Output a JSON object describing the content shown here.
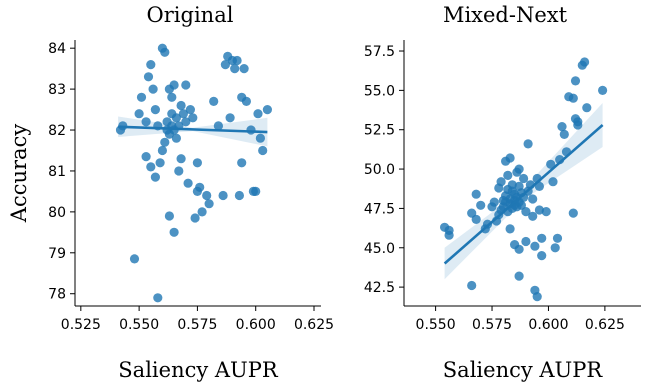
{
  "chart_data": [
    {
      "type": "scatter",
      "title": "Original",
      "xlabel": "Saliency AUPR",
      "ylabel": "Accuracy",
      "xlim": [
        0.5225,
        0.628
      ],
      "ylim": [
        77.7,
        84.2
      ],
      "xticks": [
        "0.525",
        "0.550",
        "0.575",
        "0.600",
        "0.625"
      ],
      "yticks": [
        "78",
        "79",
        "80",
        "81",
        "82",
        "83",
        "84"
      ],
      "xtick_values": [
        0.525,
        0.55,
        0.575,
        0.6,
        0.625
      ],
      "ytick_values": [
        78,
        79,
        80,
        81,
        82,
        83,
        84
      ],
      "regression": {
        "x": [
          0.541,
          0.605
        ],
        "y": [
          82.08,
          81.95
        ],
        "ci_halfwidth": [
          0.25,
          0.04,
          0.35
        ]
      },
      "points": [
        [
          0.542,
          82.0
        ],
        [
          0.543,
          82.1
        ],
        [
          0.548,
          78.85
        ],
        [
          0.55,
          82.4
        ],
        [
          0.551,
          82.8
        ],
        [
          0.553,
          82.2
        ],
        [
          0.553,
          81.35
        ],
        [
          0.554,
          83.3
        ],
        [
          0.555,
          83.6
        ],
        [
          0.555,
          81.1
        ],
        [
          0.556,
          83.0
        ],
        [
          0.557,
          80.85
        ],
        [
          0.557,
          82.5
        ],
        [
          0.558,
          77.9
        ],
        [
          0.558,
          82.1
        ],
        [
          0.559,
          81.2
        ],
        [
          0.56,
          84.0
        ],
        [
          0.56,
          81.5
        ],
        [
          0.561,
          83.9
        ],
        [
          0.561,
          81.7
        ],
        [
          0.562,
          82.0
        ],
        [
          0.562,
          82.2
        ],
        [
          0.563,
          79.9
        ],
        [
          0.563,
          83.0
        ],
        [
          0.563,
          81.9
        ],
        [
          0.564,
          82.8
        ],
        [
          0.564,
          82.1
        ],
        [
          0.564,
          82.4
        ],
        [
          0.565,
          79.5
        ],
        [
          0.565,
          82.0
        ],
        [
          0.565,
          83.1
        ],
        [
          0.566,
          81.8
        ],
        [
          0.566,
          82.3
        ],
        [
          0.567,
          82.1
        ],
        [
          0.567,
          81.0
        ],
        [
          0.568,
          82.6
        ],
        [
          0.568,
          81.3
        ],
        [
          0.569,
          82.4
        ],
        [
          0.57,
          83.1
        ],
        [
          0.57,
          82.2
        ],
        [
          0.571,
          80.7
        ],
        [
          0.572,
          82.5
        ],
        [
          0.573,
          82.3
        ],
        [
          0.574,
          79.85
        ],
        [
          0.575,
          80.5
        ],
        [
          0.575,
          81.2
        ],
        [
          0.576,
          80.6
        ],
        [
          0.577,
          80.0
        ],
        [
          0.579,
          80.4
        ],
        [
          0.58,
          80.2
        ],
        [
          0.582,
          82.7
        ],
        [
          0.584,
          82.1
        ],
        [
          0.586,
          80.4
        ],
        [
          0.587,
          83.6
        ],
        [
          0.588,
          83.8
        ],
        [
          0.589,
          82.3
        ],
        [
          0.59,
          83.7
        ],
        [
          0.591,
          83.5
        ],
        [
          0.592,
          83.7
        ],
        [
          0.593,
          80.4
        ],
        [
          0.594,
          82.8
        ],
        [
          0.594,
          81.2
        ],
        [
          0.595,
          83.5
        ],
        [
          0.596,
          82.7
        ],
        [
          0.598,
          82.0
        ],
        [
          0.599,
          80.5
        ],
        [
          0.6,
          80.5
        ],
        [
          0.601,
          82.4
        ],
        [
          0.602,
          81.8
        ],
        [
          0.603,
          81.5
        ],
        [
          0.605,
          82.5
        ]
      ]
    },
    {
      "type": "scatter",
      "title": "Mixed-Next",
      "xlabel": "Saliency AUPR",
      "ylabel": "",
      "xlim": [
        0.536,
        0.641
      ],
      "ylim": [
        41.3,
        58.2
      ],
      "xticks": [
        "0.550",
        "0.575",
        "0.600",
        "0.625"
      ],
      "yticks": [
        "42.5",
        "45.0",
        "47.5",
        "50.0",
        "52.5",
        "55.0",
        "57.5"
      ],
      "xtick_values": [
        0.55,
        0.575,
        0.6,
        0.625
      ],
      "ytick_values": [
        42.5,
        45,
        47.5,
        50,
        52.5,
        55,
        57.5
      ],
      "regression": {
        "x": [
          0.554,
          0.624
        ],
        "y": [
          44.0,
          52.8
        ],
        "ci_halfwidth": [
          1.0,
          0.35,
          1.4
        ]
      },
      "points": [
        [
          0.554,
          46.3
        ],
        [
          0.556,
          45.8
        ],
        [
          0.556,
          46.1
        ],
        [
          0.566,
          47.2
        ],
        [
          0.566,
          42.6
        ],
        [
          0.568,
          48.4
        ],
        [
          0.568,
          46.8
        ],
        [
          0.57,
          47.7
        ],
        [
          0.572,
          46.2
        ],
        [
          0.573,
          46.5
        ],
        [
          0.575,
          47.6
        ],
        [
          0.576,
          47.9
        ],
        [
          0.577,
          46.7
        ],
        [
          0.578,
          48.8
        ],
        [
          0.578,
          47.1
        ],
        [
          0.579,
          49.2
        ],
        [
          0.579,
          47.4
        ],
        [
          0.58,
          48.0
        ],
        [
          0.58,
          47.6
        ],
        [
          0.581,
          50.5
        ],
        [
          0.581,
          48.3
        ],
        [
          0.581,
          47.9
        ],
        [
          0.582,
          49.6
        ],
        [
          0.582,
          47.3
        ],
        [
          0.582,
          48.7
        ],
        [
          0.583,
          50.7
        ],
        [
          0.583,
          47.8
        ],
        [
          0.583,
          48.1
        ],
        [
          0.583,
          46.2
        ],
        [
          0.584,
          48.6
        ],
        [
          0.584,
          47.5
        ],
        [
          0.584,
          49.0
        ],
        [
          0.585,
          48.0
        ],
        [
          0.585,
          47.7
        ],
        [
          0.585,
          48.4
        ],
        [
          0.585,
          45.2
        ],
        [
          0.586,
          49.8
        ],
        [
          0.586,
          48.2
        ],
        [
          0.586,
          47.6
        ],
        [
          0.587,
          50.0
        ],
        [
          0.587,
          48.9
        ],
        [
          0.587,
          47.9
        ],
        [
          0.587,
          44.9
        ],
        [
          0.587,
          43.2
        ],
        [
          0.588,
          48.5
        ],
        [
          0.588,
          47.7
        ],
        [
          0.589,
          48.2
        ],
        [
          0.589,
          49.4
        ],
        [
          0.59,
          47.3
        ],
        [
          0.59,
          45.4
        ],
        [
          0.591,
          51.6
        ],
        [
          0.591,
          48.6
        ],
        [
          0.592,
          49.0
        ],
        [
          0.593,
          48.1
        ],
        [
          0.593,
          47.0
        ],
        [
          0.594,
          45.1
        ],
        [
          0.594,
          42.3
        ],
        [
          0.595,
          41.9
        ],
        [
          0.595,
          49.4
        ],
        [
          0.596,
          48.9
        ],
        [
          0.596,
          47.4
        ],
        [
          0.597,
          44.5
        ],
        [
          0.597,
          45.6
        ],
        [
          0.599,
          47.3
        ],
        [
          0.601,
          50.3
        ],
        [
          0.602,
          49.2
        ],
        [
          0.603,
          45.0
        ],
        [
          0.604,
          45.6
        ],
        [
          0.605,
          50.6
        ],
        [
          0.606,
          52.7
        ],
        [
          0.607,
          52.2
        ],
        [
          0.608,
          51.1
        ],
        [
          0.609,
          54.6
        ],
        [
          0.611,
          54.5
        ],
        [
          0.611,
          47.2
        ],
        [
          0.612,
          55.6
        ],
        [
          0.612,
          53.2
        ],
        [
          0.613,
          52.8
        ],
        [
          0.613,
          53.0
        ],
        [
          0.615,
          56.6
        ],
        [
          0.616,
          56.8
        ],
        [
          0.617,
          53.9
        ],
        [
          0.624,
          55.0
        ]
      ]
    }
  ]
}
